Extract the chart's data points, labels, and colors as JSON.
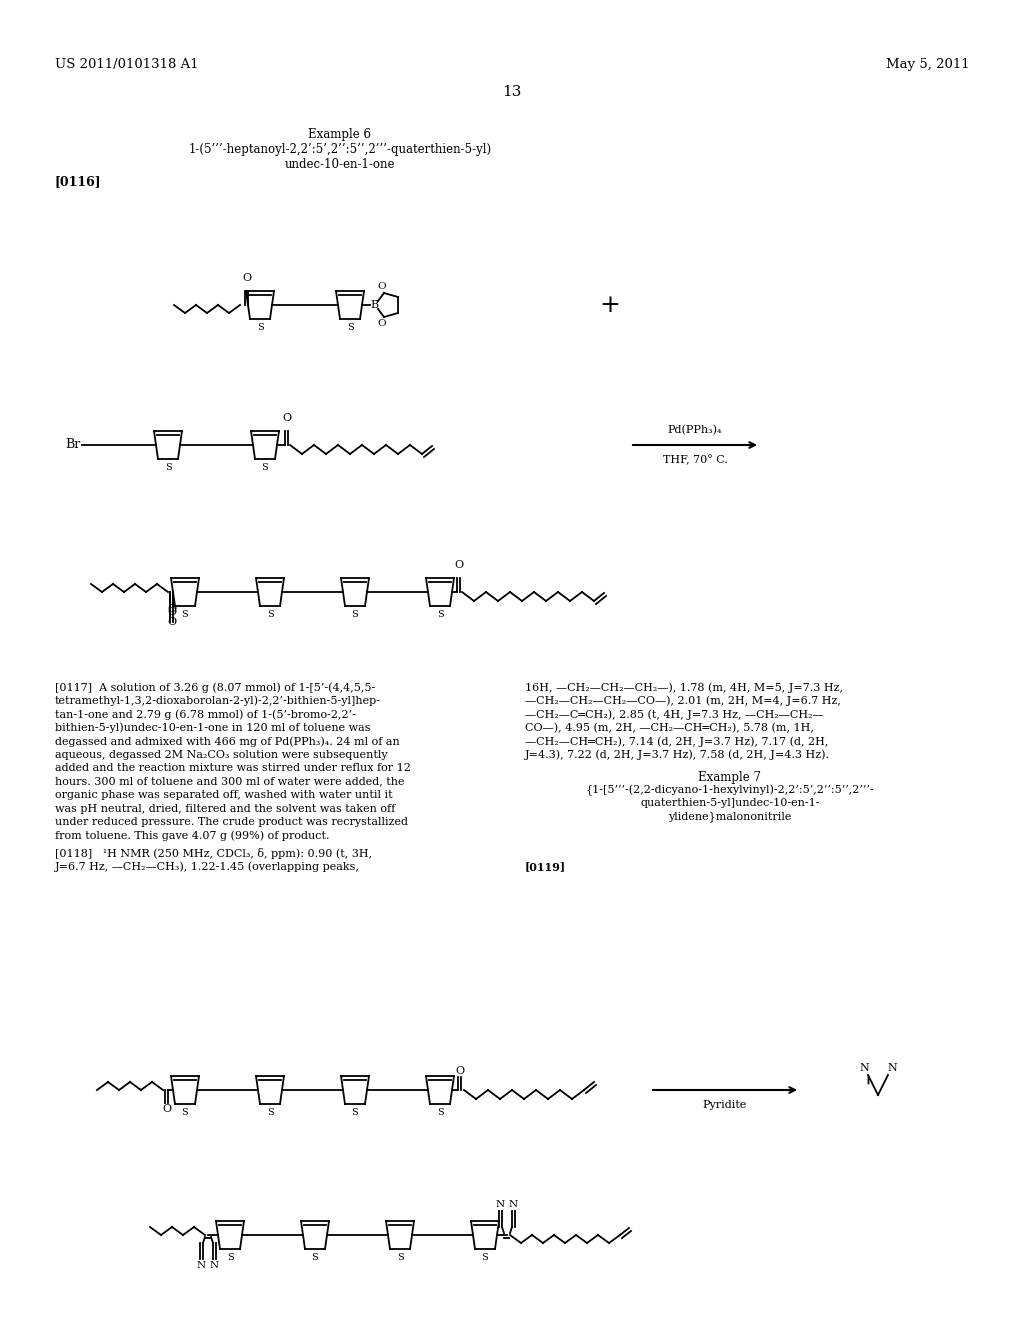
{
  "background_color": "#ffffff",
  "page_number": "13",
  "header_left": "US 2011/0101318 A1",
  "header_right": "May 5, 2011",
  "example6_title": "Example 6",
  "example6_line1": "1-(5’’’-heptanoyl-2,2’:5’,2’’:5’’,2’’’-quaterthien-5-yl)",
  "example6_line2": "undec-10-en-1-one",
  "para0116": "[0116]",
  "para0117_bold": "[0117]",
  "para0117_text": "  A solution of 3.26 g (8.07 mmol) of 1-[5’-(4,4,5,5-tetramethyl-1,3,2-dioxaborolan-2-yl)-2,2’-bithien-5-yl]hep-tan-1-one and 2.79 g (6.78 mmol) of 1-(5’-bromo-2,2’-bithien-5-yl)undec-10-en-1-one in 120 ml of toluene was degassed and admixed with 466 mg of Pd(PPh₃)₄. 24 ml of an aqueous, degassed 2M Na₂CO₃ solution were subsequently added and the reaction mixture was stirred under reflux for 12 hours. 300 ml of toluene and 300 ml of water were added, the organic phase was separated off, washed with water until it was pH neutral, dried, filtered and the solvent was taken off under reduced pressure. The crude product was recrystallized from toluene. This gave 4.07 g (99%) of product.",
  "para0118_bold": "[0118]",
  "para0118_text": "   ¹H NMR (250 MHz, CDCl₃, δ, ppm): 0.90 (t, 3H, J=6.7 Hz, —CH₂—CH₃), 1.22-1.45 (overlapping peaks,",
  "para0117_right": "16H, —CH₂—CH₂—CH₂—), 1.78 (m, 4H, M=5, J=7.3 Hz, —CH₂—CH₂—CH₂—CO—), 2.01 (m, 2H, M=4, J=6.7 Hz, —CH₂—C═CH₂), 2.85 (t, 4H, J=7.3 Hz, —CH₂—CH₂—CO—), 4.95 (m, 2H, —CH₂—CH═CH₂), 5.78 (m, 1H, —CH₂—CH═CH₂), 7.14 (d, 2H, J=3.7 Hz), 7.17 (d, 2H, J=4.3), 7.22 (d, 2H, J=3.7 Hz), 7.58 (d, 2H, J=4.3 Hz).",
  "example7_title": "Example 7",
  "example7_sub1": "{1-[5’’’-(2,2-dicyano-1-hexylvinyl)-2,2’:5’,2’’:5’’,2’’’-",
  "example7_sub2": "quaterthien-5-yl]undec-10-en-1-",
  "example7_sub3": "ylidene}malononitrile",
  "para0119": "[0119]"
}
